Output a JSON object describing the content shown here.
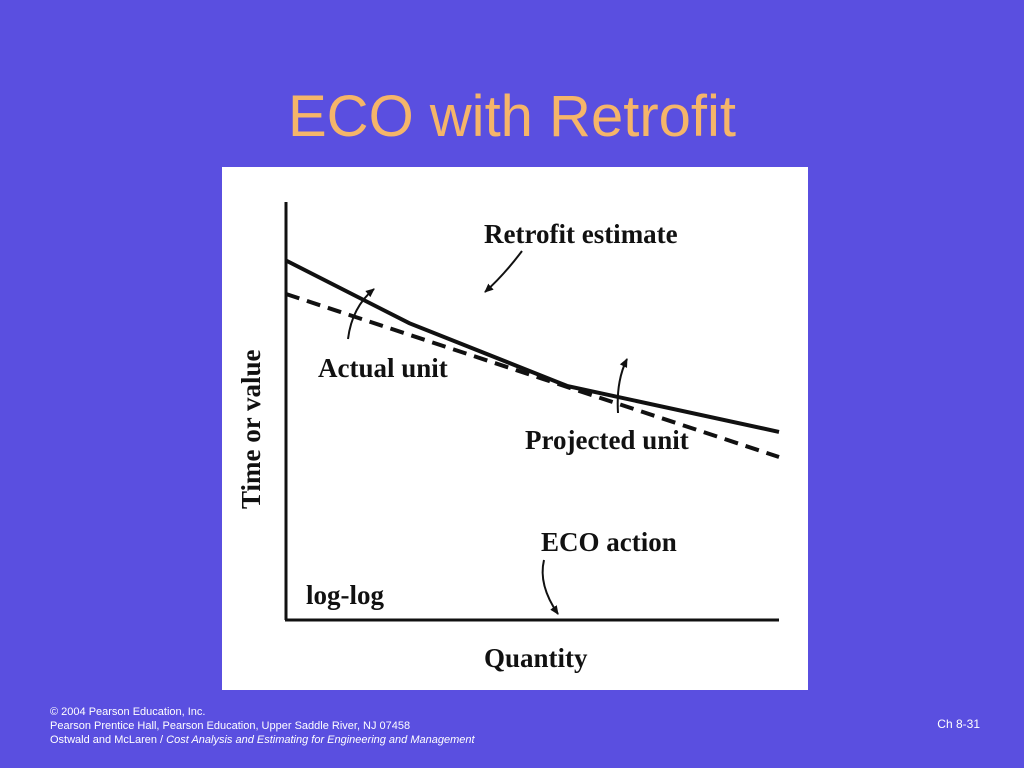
{
  "slide": {
    "title": "ECO with Retrofit",
    "number": "Ch 8-31",
    "background_color": "#5a4fe0",
    "title_color": "#f5b569"
  },
  "footer": {
    "copyright": "© 2004 Pearson Education, Inc.",
    "publisher": "Pearson Prentice Hall, Pearson Education, Upper Saddle River, NJ 07458",
    "authors": "Ostwald and McLaren / ",
    "book_title": "Cost Analysis and Estimating for Engineering and Management"
  },
  "chart_data": {
    "type": "line",
    "scale": "log-log",
    "xlabel": "Quantity",
    "ylabel": "Time or value",
    "scale_note": "log-log",
    "grid": false,
    "ticks": false,
    "series": [
      {
        "name": "Retrofit estimate",
        "style": "solid",
        "points": [
          [
            0,
            0.86
          ],
          [
            0.25,
            0.71
          ],
          [
            0.57,
            0.56
          ],
          [
            1.0,
            0.45
          ]
        ]
      },
      {
        "name": "Projected unit",
        "style": "dashed",
        "points": [
          [
            0,
            0.78
          ],
          [
            1.0,
            0.39
          ]
        ]
      }
    ],
    "annotations": [
      {
        "text": "Retrofit estimate",
        "points_to": "Retrofit estimate"
      },
      {
        "text": "Actual unit",
        "points_to": "Projected unit"
      },
      {
        "text": "Projected unit",
        "points_to": "Projected unit"
      },
      {
        "text": "ECO action",
        "points_to": "x-axis"
      }
    ]
  }
}
